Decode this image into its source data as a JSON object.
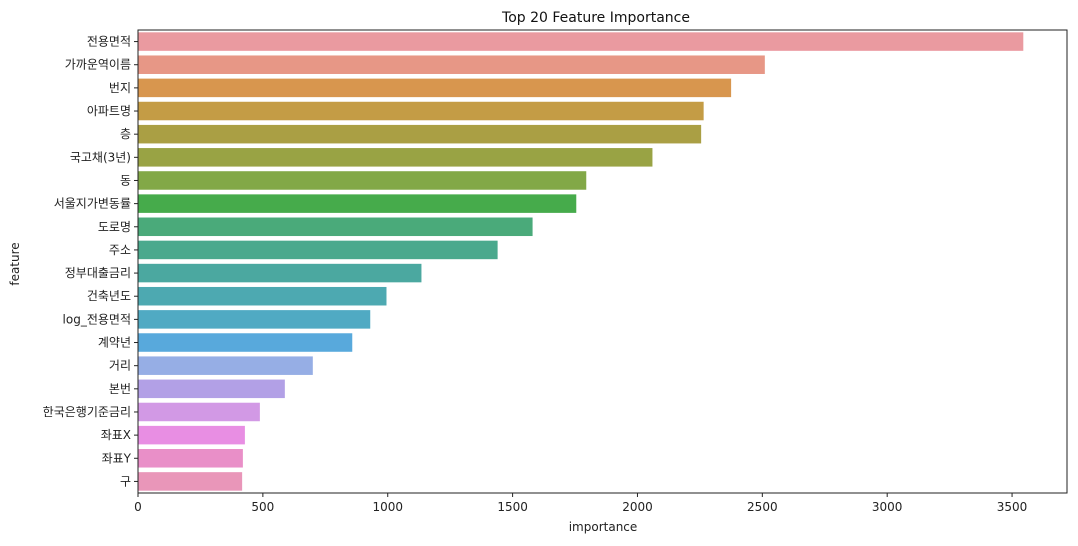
{
  "chart_data": {
    "type": "bar",
    "orientation": "horizontal",
    "title": "Top 20 Feature Importance",
    "xlabel": "importance",
    "ylabel": "feature",
    "xlim": [
      0,
      3720
    ],
    "xticks": [
      0,
      500,
      1000,
      1500,
      2000,
      2500,
      3000,
      3500
    ],
    "grid": false,
    "legend": "none",
    "categories": [
      "전용면적",
      "가까운역이름",
      "번지",
      "아파트명",
      "층",
      "국고채(3년)",
      "동",
      "서울지가변동률",
      "도로명",
      "주소",
      "정부대출금리",
      "건축년도",
      "log_전용면적",
      "계약년",
      "거리",
      "본번",
      "한국은행기준금리",
      "좌표X",
      "좌표Y",
      "구"
    ],
    "values": [
      3545,
      2510,
      2375,
      2265,
      2255,
      2060,
      1795,
      1755,
      1580,
      1440,
      1135,
      995,
      930,
      858,
      700,
      588,
      488,
      428,
      420,
      417
    ],
    "colors": [
      "#ea9aa0",
      "#e79786",
      "#d8964e",
      "#c49c45",
      "#aa9f44",
      "#99a344",
      "#82a847",
      "#46ab4b",
      "#4aaa7a",
      "#4aa98d",
      "#4ba8a0",
      "#4da9b1",
      "#50aac3",
      "#58a9dc",
      "#96aee5",
      "#b2a0e6",
      "#d299e5",
      "#e88ee3",
      "#e98fc8",
      "#e996b9"
    ]
  }
}
